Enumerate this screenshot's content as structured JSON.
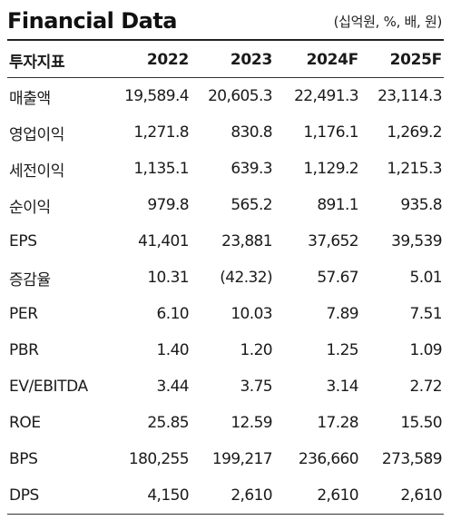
{
  "header": {
    "title": "Financial Data",
    "unit_note": "(십억원, %, 배, 원)"
  },
  "table": {
    "columns": [
      "투자지표",
      "2022",
      "2023",
      "2024F",
      "2025F"
    ],
    "rows": [
      {
        "label": "매출액",
        "values": [
          "19,589.4",
          "20,605.3",
          "22,491.3",
          "23,114.3"
        ]
      },
      {
        "label": "영업이익",
        "values": [
          "1,271.8",
          "830.8",
          "1,176.1",
          "1,269.2"
        ]
      },
      {
        "label": "세전이익",
        "values": [
          "1,135.1",
          "639.3",
          "1,129.2",
          "1,215.3"
        ]
      },
      {
        "label": "순이익",
        "values": [
          "979.8",
          "565.2",
          "891.1",
          "935.8"
        ]
      },
      {
        "label": "EPS",
        "values": [
          "41,401",
          "23,881",
          "37,652",
          "39,539"
        ]
      },
      {
        "label": "증감율",
        "values": [
          "10.31",
          "(42.32)",
          "57.67",
          "5.01"
        ]
      },
      {
        "label": "PER",
        "values": [
          "6.10",
          "10.03",
          "7.89",
          "7.51"
        ]
      },
      {
        "label": "PBR",
        "values": [
          "1.40",
          "1.20",
          "1.25",
          "1.09"
        ]
      },
      {
        "label": "EV/EBITDA",
        "values": [
          "3.44",
          "3.75",
          "3.14",
          "2.72"
        ]
      },
      {
        "label": "ROE",
        "values": [
          "25.85",
          "12.59",
          "17.28",
          "15.50"
        ]
      },
      {
        "label": "BPS",
        "values": [
          "180,255",
          "199,217",
          "236,660",
          "273,589"
        ]
      },
      {
        "label": "DPS",
        "values": [
          "4,150",
          "2,610",
          "2,610",
          "2,610"
        ]
      }
    ]
  }
}
